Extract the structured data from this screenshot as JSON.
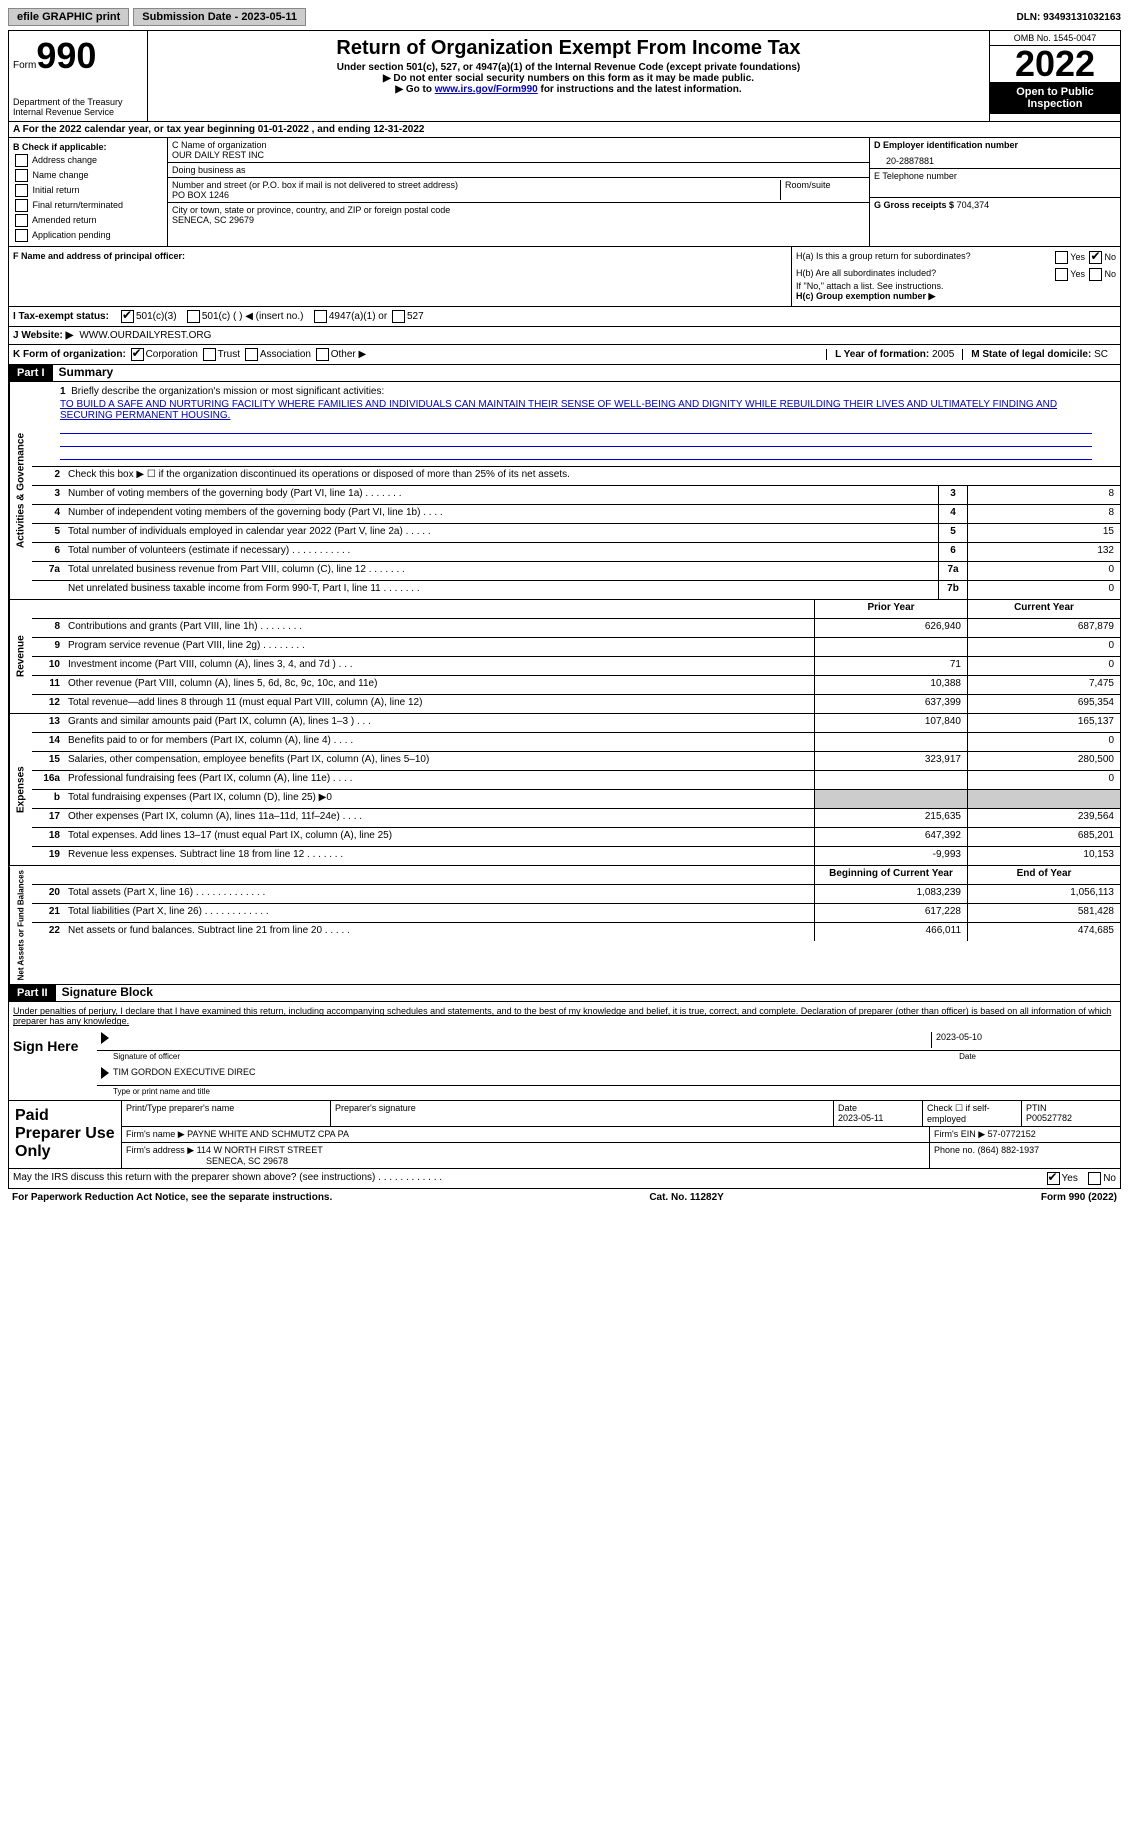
{
  "topbar": {
    "efile_label": "efile GRAPHIC print",
    "submission_label": "Submission Date - 2023-05-11",
    "dln_label": "DLN: 93493131032163"
  },
  "header": {
    "form_word": "Form",
    "form_number": "990",
    "dept1": "Department of the Treasury",
    "dept2": "Internal Revenue Service",
    "title": "Return of Organization Exempt From Income Tax",
    "subtitle": "Under section 501(c), 527, or 4947(a)(1) of the Internal Revenue Code (except private foundations)",
    "note1": "▶ Do not enter social security numbers on this form as it may be made public.",
    "note2_pre": "▶ Go to ",
    "note2_link": "www.irs.gov/Form990",
    "note2_post": " for instructions and the latest information.",
    "omb": "OMB No. 1545-0047",
    "year": "2022",
    "open_pub": "Open to Public Inspection"
  },
  "rowA": "A For the 2022 calendar year, or tax year beginning 01-01-2022   , and ending 12-31-2022",
  "colB": {
    "header": "B Check if applicable:",
    "items": [
      "Address change",
      "Name change",
      "Initial return",
      "Final return/terminated",
      "Amended return",
      "Application pending"
    ]
  },
  "colC": {
    "name_label": "C Name of organization",
    "name": "OUR DAILY REST INC",
    "dba_label": "Doing business as",
    "dba": "",
    "addr_label": "Number and street (or P.O. box if mail is not delivered to street address)",
    "room_label": "Room/suite",
    "addr": "PO BOX 1246",
    "city_label": "City or town, state or province, country, and ZIP or foreign postal code",
    "city": "SENECA, SC  29679",
    "officer_label": "F Name and address of principal officer:",
    "officer": ""
  },
  "colD": {
    "ein_label": "D Employer identification number",
    "ein": "20-2887881",
    "phone_label": "E Telephone number",
    "phone": "",
    "gross_label": "G Gross receipts $",
    "gross": "704,374"
  },
  "secH": {
    "ha": "H(a)  Is this a group return for subordinates?",
    "hb": "H(b)  Are all subordinates included?",
    "hb_note": "If \"No,\" attach a list. See instructions.",
    "hc": "H(c)  Group exemption number ▶",
    "yes": "Yes",
    "no": "No"
  },
  "secI": {
    "label": "I   Tax-exempt status:",
    "opt1": "501(c)(3)",
    "opt2": "501(c) (  ) ◀ (insert no.)",
    "opt3": "4947(a)(1) or",
    "opt4": "527"
  },
  "secJ": {
    "label": "J   Website: ▶",
    "value": "WWW.OURDAILYREST.ORG"
  },
  "secK": {
    "label": "K Form of organization:",
    "opts": [
      "Corporation",
      "Trust",
      "Association",
      "Other ▶"
    ]
  },
  "secL": {
    "label": "L Year of formation:",
    "value": "2005"
  },
  "secM": {
    "label": "M State of legal domicile:",
    "value": "SC"
  },
  "part1": {
    "header": "Part I",
    "title": "Summary",
    "q1": "Briefly describe the organization's mission or most significant activities:",
    "mission": "TO BUILD A SAFE AND NURTURING FACILITY WHERE FAMILIES AND INDIVIDUALS CAN MAINTAIN THEIR SENSE OF WELL-BEING AND DIGNITY WHILE REBUILDING THEIR LIVES AND ULTIMATELY FINDING AND SECURING PERMANENT HOUSING.",
    "q2": "Check this box ▶ ☐ if the organization discontinued its operations or disposed of more than 25% of its net assets.",
    "prior_year": "Prior Year",
    "current_year": "Current Year",
    "begin_year": "Beginning of Current Year",
    "end_year": "End of Year"
  },
  "governance_rows": [
    {
      "n": "3",
      "t": "Number of voting members of the governing body (Part VI, line 1a)   .    .    .    .    .    .    .",
      "box": "3",
      "v": "8"
    },
    {
      "n": "4",
      "t": "Number of independent voting members of the governing body (Part VI, line 1b)   .    .    .    .",
      "box": "4",
      "v": "8"
    },
    {
      "n": "5",
      "t": "Total number of individuals employed in calendar year 2022 (Part V, line 2a)   .    .    .    .    .",
      "box": "5",
      "v": "15"
    },
    {
      "n": "6",
      "t": "Total number of volunteers (estimate if necessary)    .    .    .    .    .    .    .    .    .    .    .",
      "box": "6",
      "v": "132"
    },
    {
      "n": "7a",
      "t": "Total unrelated business revenue from Part VIII, column (C), line 12   .    .    .    .    .    .    .",
      "box": "7a",
      "v": "0"
    },
    {
      "n": "",
      "t": "Net unrelated business taxable income from Form 990-T, Part I, line 11  .    .    .    .    .    .    .",
      "box": "7b",
      "v": "0"
    }
  ],
  "revenue_rows": [
    {
      "n": "8",
      "t": "Contributions and grants (Part VIII, line 1h)   .    .    .    .    .    .    .    .",
      "v1": "626,940",
      "v2": "687,879"
    },
    {
      "n": "9",
      "t": "Program service revenue (Part VIII, line 2g)   .    .    .    .    .    .    .    .",
      "v1": "",
      "v2": "0"
    },
    {
      "n": "10",
      "t": "Investment income (Part VIII, column (A), lines 3, 4, and 7d )   .    .    .",
      "v1": "71",
      "v2": "0"
    },
    {
      "n": "11",
      "t": "Other revenue (Part VIII, column (A), lines 5, 6d, 8c, 9c, 10c, and 11e)",
      "v1": "10,388",
      "v2": "7,475"
    },
    {
      "n": "12",
      "t": "Total revenue—add lines 8 through 11 (must equal Part VIII, column (A), line 12)",
      "v1": "637,399",
      "v2": "695,354"
    }
  ],
  "expense_rows": [
    {
      "n": "13",
      "t": "Grants and similar amounts paid (Part IX, column (A), lines 1–3 )  .    .    .",
      "v1": "107,840",
      "v2": "165,137"
    },
    {
      "n": "14",
      "t": "Benefits paid to or for members (Part IX, column (A), line 4)   .    .    .    .",
      "v1": "",
      "v2": "0"
    },
    {
      "n": "15",
      "t": "Salaries, other compensation, employee benefits (Part IX, column (A), lines 5–10)",
      "v1": "323,917",
      "v2": "280,500"
    },
    {
      "n": "16a",
      "t": "Professional fundraising fees (Part IX, column (A), line 11e)   .    .    .    .",
      "v1": "",
      "v2": "0"
    },
    {
      "n": "b",
      "t": "Total fundraising expenses (Part IX, column (D), line 25) ▶0",
      "v1": "shaded",
      "v2": "shaded"
    },
    {
      "n": "17",
      "t": "Other expenses (Part IX, column (A), lines 11a–11d, 11f–24e)   .    .    .    .",
      "v1": "215,635",
      "v2": "239,564"
    },
    {
      "n": "18",
      "t": "Total expenses. Add lines 13–17 (must equal Part IX, column (A), line 25)",
      "v1": "647,392",
      "v2": "685,201"
    },
    {
      "n": "19",
      "t": "Revenue less expenses. Subtract line 18 from line 12  .    .    .    .    .    .    .",
      "v1": "-9,993",
      "v2": "10,153"
    }
  ],
  "netassets_rows": [
    {
      "n": "20",
      "t": "Total assets (Part X, line 16)  .    .    .    .    .    .    .    .    .    .    .    .    .",
      "v1": "1,083,239",
      "v2": "1,056,113"
    },
    {
      "n": "21",
      "t": "Total liabilities (Part X, line 26)  .    .    .    .    .    .    .    .    .    .    .    .",
      "v1": "617,228",
      "v2": "581,428"
    },
    {
      "n": "22",
      "t": "Net assets or fund balances. Subtract line 21 from line 20   .    .    .    .    .",
      "v1": "466,011",
      "v2": "474,685"
    }
  ],
  "part2": {
    "header": "Part II",
    "title": "Signature Block",
    "penalty": "Under penalties of perjury, I declare that I have examined this return, including accompanying schedules and statements, and to the best of my knowledge and belief, it is true, correct, and complete. Declaration of preparer (other than officer) is based on all information of which preparer has any knowledge."
  },
  "sign": {
    "label": "Sign Here",
    "sig_label": "Signature of officer",
    "date_label": "Date",
    "date": "2023-05-10",
    "name": "TIM GORDON EXECUTIVE DIREC",
    "name_label": "Type or print name and title"
  },
  "paid": {
    "label": "Paid Preparer Use Only",
    "h1": "Print/Type preparer's name",
    "h2": "Preparer's signature",
    "h3": "Date",
    "h3v": "2023-05-11",
    "h4": "Check ☐ if self-employed",
    "h5": "PTIN",
    "h5v": "P00527782",
    "firm_name_label": "Firm's name    ▶",
    "firm_name": "PAYNE WHITE AND SCHMUTZ CPA PA",
    "firm_ein_label": "Firm's EIN ▶",
    "firm_ein": "57-0772152",
    "firm_addr_label": "Firm's address ▶",
    "firm_addr1": "114 W NORTH FIRST STREET",
    "firm_addr2": "SENECA, SC  29678",
    "phone_label": "Phone no.",
    "phone": "(864) 882-1937"
  },
  "discuss": {
    "q": "May the IRS discuss this return with the preparer shown above? (see instructions)   .    .    .    .    .    .    .    .    .    .    .    .",
    "yes": "Yes",
    "no": "No"
  },
  "footer": {
    "left": "For Paperwork Reduction Act Notice, see the separate instructions.",
    "mid": "Cat. No. 11282Y",
    "right": "Form 990 (2022)"
  },
  "section_labels": {
    "gov": "Activities & Governance",
    "rev": "Revenue",
    "exp": "Expenses",
    "net": "Net Assets or Fund Balances"
  }
}
